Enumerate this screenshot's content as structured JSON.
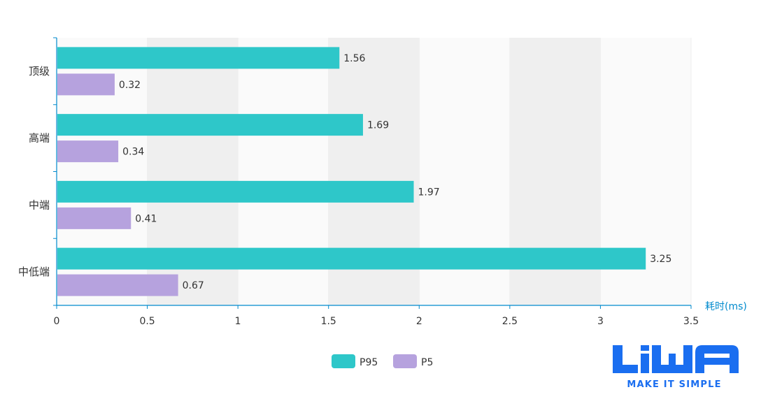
{
  "chart_data": {
    "type": "bar",
    "orientation": "horizontal",
    "categories": [
      "顶级",
      "高端",
      "中端",
      "中低端"
    ],
    "series": [
      {
        "name": "P95",
        "values": [
          1.56,
          1.69,
          1.97,
          3.25
        ],
        "color": "#2ec7c9"
      },
      {
        "name": "P5",
        "values": [
          0.32,
          0.34,
          0.41,
          0.67
        ],
        "color": "#b6a2de"
      }
    ],
    "xlabel": "耗时(ms)",
    "xlim": [
      0,
      3.5
    ],
    "x_ticks": [
      "0",
      "0.5",
      "1",
      "1.5",
      "2",
      "2.5",
      "3",
      "3.5"
    ],
    "grid": true,
    "split_area": true,
    "legend_position": "bottom-center",
    "axis_color": "#008acd",
    "axis_name_color": "#008acd"
  },
  "logo": {
    "wordmark": "LiWA",
    "tagline": "MAKE IT SIMPLE",
    "color": "#1a6ef0"
  }
}
